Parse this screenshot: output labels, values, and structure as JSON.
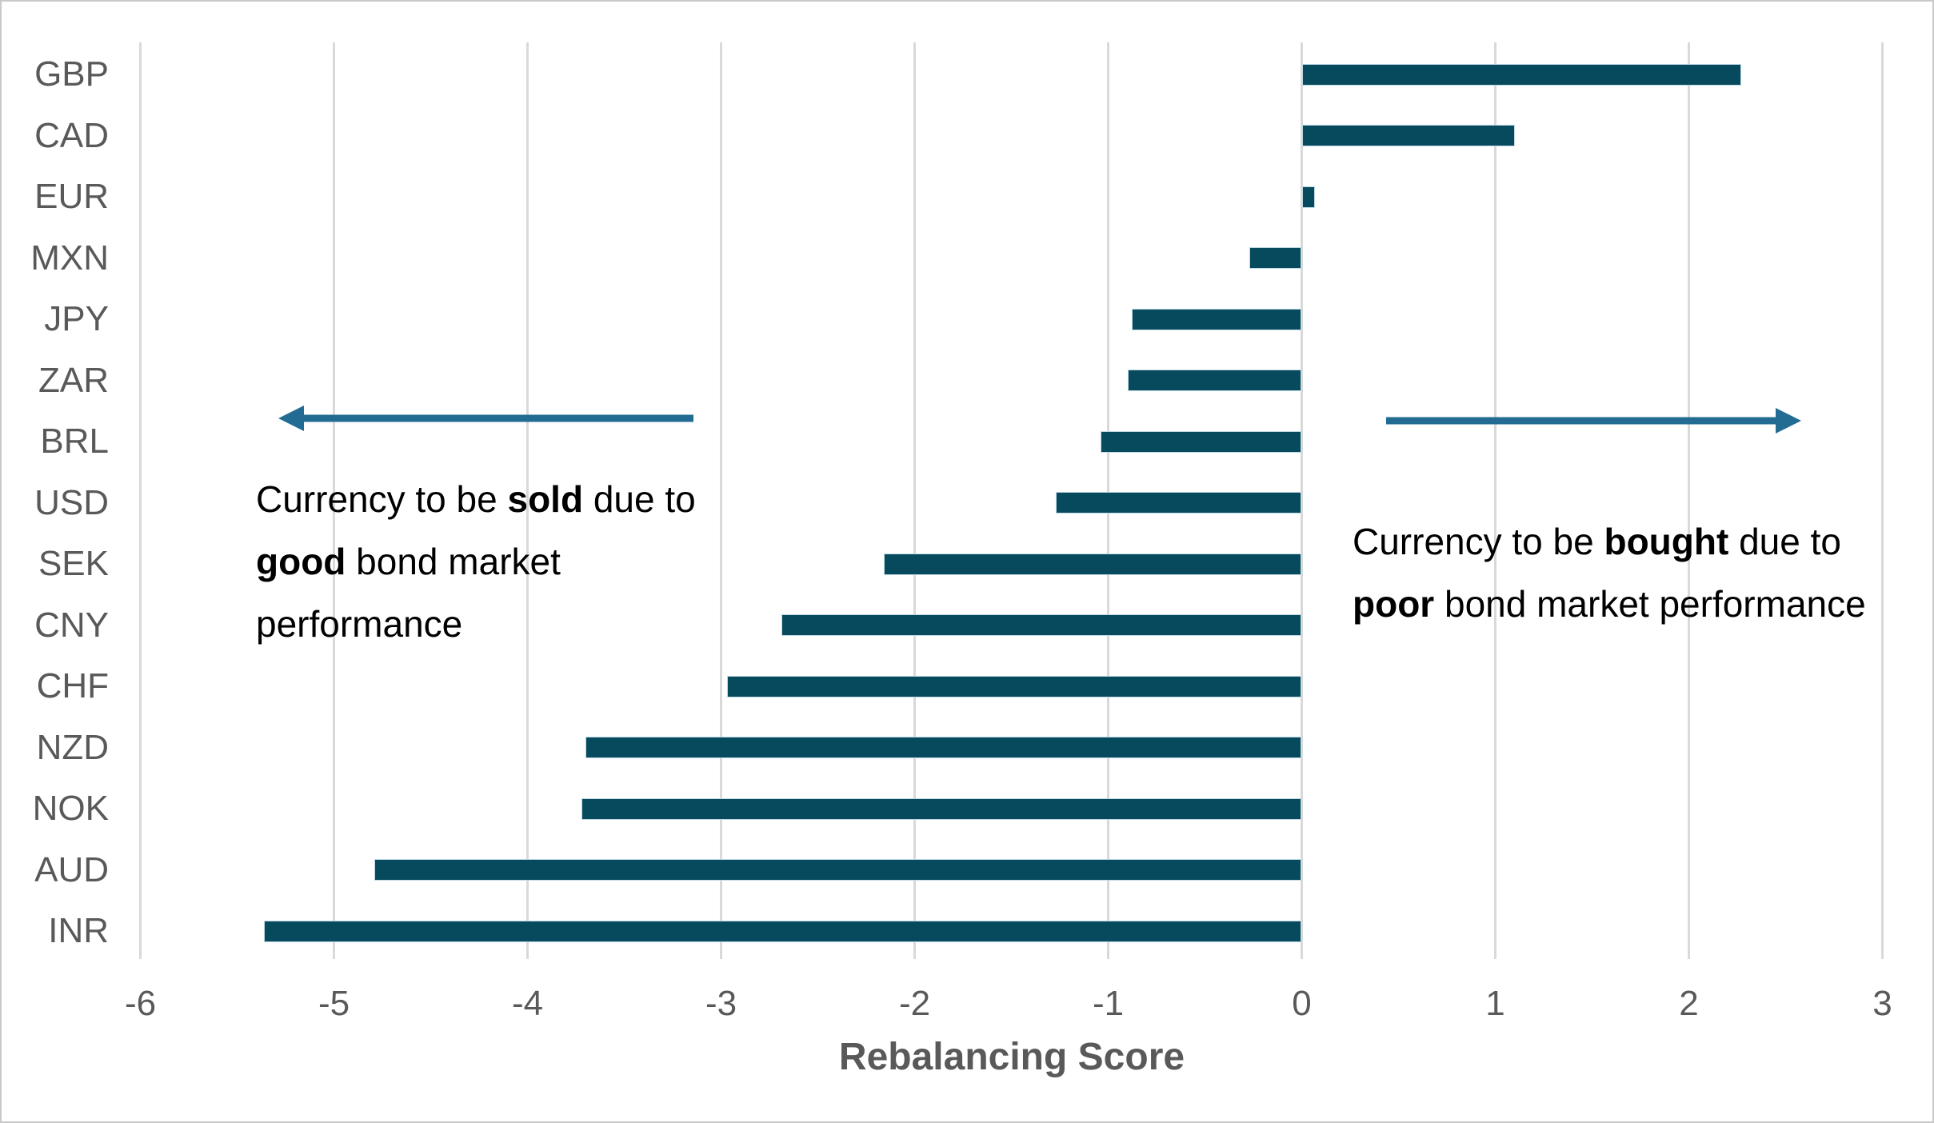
{
  "chart_data": {
    "type": "bar",
    "orientation": "horizontal",
    "categories": [
      "GBP",
      "CAD",
      "EUR",
      "MXN",
      "JPY",
      "ZAR",
      "BRL",
      "USD",
      "SEK",
      "CNY",
      "CHF",
      "NZD",
      "NOK",
      "AUD",
      "INR"
    ],
    "values": [
      2.27,
      1.1,
      0.07,
      -0.27,
      -0.88,
      -0.9,
      -1.04,
      -1.27,
      -2.16,
      -2.69,
      -2.97,
      -3.7,
      -3.72,
      -4.79,
      -5.36
    ],
    "xlabel": "Rebalancing Score",
    "xlim": [
      -6,
      3
    ],
    "xticks": [
      -6,
      -5,
      -4,
      -3,
      -2,
      -1,
      0,
      1,
      2,
      3
    ],
    "grid": "vertical-major-gridlines",
    "legend": "none",
    "title": ""
  },
  "annotations": {
    "left": {
      "arrow_direction": "left",
      "lines": [
        [
          {
            "text": "Currency to be "
          },
          {
            "text": "sold",
            "bold": true
          },
          {
            "text": " due to"
          }
        ],
        [
          {
            "text": "good",
            "bold": true
          },
          {
            "text": " bond market"
          }
        ],
        [
          {
            "text": "performance"
          }
        ]
      ]
    },
    "right": {
      "arrow_direction": "right",
      "lines": [
        [
          {
            "text": "Currency to be "
          },
          {
            "text": "bought",
            "bold": true
          },
          {
            "text": " due to"
          }
        ],
        [
          {
            "text": "poor",
            "bold": true
          },
          {
            "text": " bond market performance"
          }
        ]
      ]
    }
  },
  "theme": {
    "bar_color": "#074a5e",
    "bar_edge_color": "#bfd8e4",
    "arrow_color": "#226c93",
    "grid_color": "#d9d9d9",
    "axis_text_color": "#595959",
    "annotation_text_color": "#000000",
    "background_color": "#ffffff",
    "border_color": "#c9c9c9"
  }
}
